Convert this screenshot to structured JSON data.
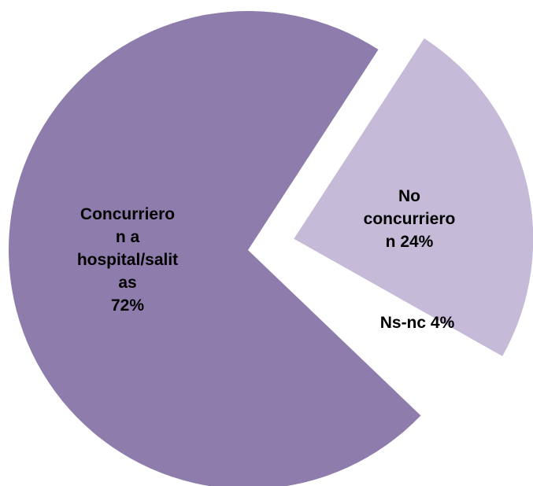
{
  "chart_data": {
    "type": "pie",
    "categories": [
      "No concurrieron",
      "Ns-nc",
      "Concurrieron a hospital/salitas"
    ],
    "values": [
      24,
      4,
      72
    ],
    "value_labels": [
      "24%",
      "4%",
      "72%"
    ],
    "colors": [
      "#c5bbd8",
      "#ffffff",
      "#8e7cac"
    ]
  }
}
